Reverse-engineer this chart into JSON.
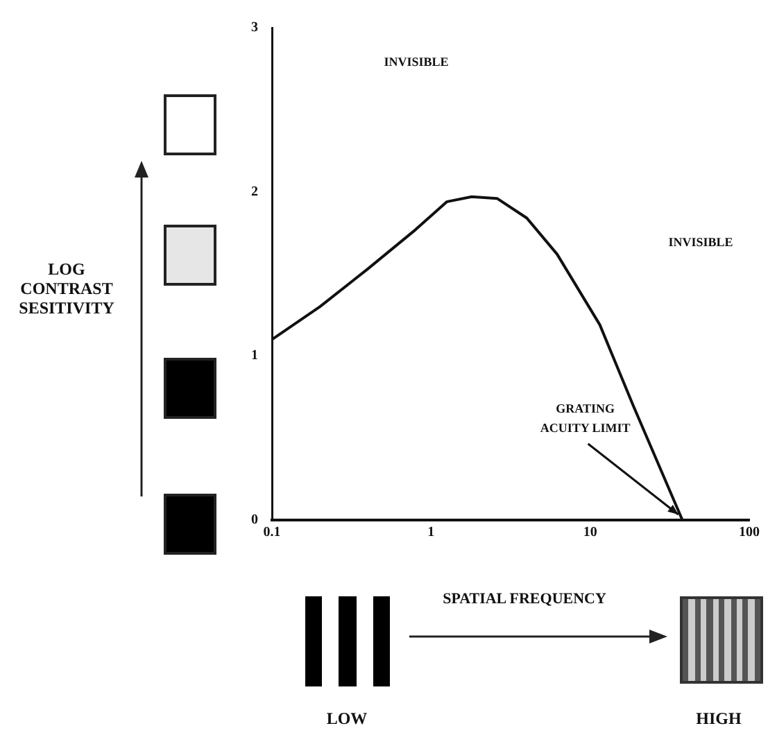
{
  "chart_data": {
    "type": "line",
    "xlabel": "SPATIAL FREQUENCY",
    "log": "x",
    "xlim": [
      0.1,
      100
    ],
    "xticks": [
      0.1,
      1,
      10,
      100
    ],
    "ylim": [
      0,
      3
    ],
    "yticks": [
      0,
      1,
      2,
      3
    ],
    "grid": false,
    "legend": false,
    "marker": "none",
    "line_style": "solid",
    "series": [
      {
        "color": "#111111",
        "x": [
          0.1,
          0.2,
          0.4,
          0.8,
          1.26,
          1.8,
          2.6,
          4,
          6.2,
          11.5,
          18.6,
          38,
          100
        ],
        "values": [
          1.1,
          1.3,
          1.53,
          1.77,
          1.94,
          1.97,
          1.96,
          1.84,
          1.62,
          1.19,
          0.7,
          0,
          0
        ]
      }
    ],
    "annotations": [
      "INVISIBLE",
      "INVISIBLE",
      {
        "text": "GRATING ACUITY LIMIT",
        "x": 38,
        "y": 0
      },
      "LOW",
      "HIGH",
      "LOG CONTRAST SESITIVITY"
    ]
  }
}
